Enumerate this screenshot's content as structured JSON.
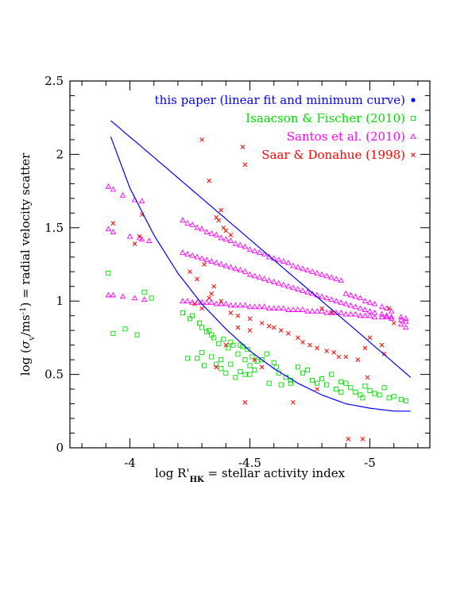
{
  "chart_data": {
    "type": "scatter",
    "xlabel": "log R'HK  = stellar activity index",
    "xlabel_parts": {
      "main": "log R'",
      "sub": "HK",
      "rest": "  = stellar activity index"
    },
    "ylabel": "log (σv/ms-1)  = radial velocity scatter",
    "ylabel_parts": {
      "a": "log (",
      "sigma": "σ",
      "sub": "v",
      "b": "/ms",
      "sup": "-1",
      "c": ")  = radial velocity scatter"
    },
    "x_reversed": true,
    "xlim": [
      -3.75,
      -5.25
    ],
    "ylim": [
      0,
      2.5
    ],
    "x_ticks": [
      -4,
      -4.5,
      -5
    ],
    "x_tick_labels": [
      "-4",
      "-4.5",
      "-5"
    ],
    "y_ticks": [
      0,
      0.5,
      1,
      1.5,
      2,
      2.5
    ],
    "y_tick_labels": [
      "0",
      "0.5",
      "1",
      "1.5",
      "2",
      "2.5"
    ],
    "grid": false,
    "legend_position": "top-right",
    "series": [
      {
        "name": "this paper (linear fit and minimum curve)",
        "color": "#0000ff",
        "marker": "dot",
        "kind": "lines",
        "lines": [
          {
            "x": [
              -3.92,
              -4.1,
              -4.3,
              -4.5,
              -4.7,
              -4.9,
              -5.17
            ],
            "y": [
              2.23,
              1.98,
              1.7,
              1.42,
              1.14,
              0.86,
              0.48
            ]
          },
          {
            "x": [
              -3.92,
              -4.0,
              -4.1,
              -4.2,
              -4.3,
              -4.4,
              -4.5,
              -4.6,
              -4.7,
              -4.8,
              -4.9,
              -5.0,
              -5.1,
              -5.17
            ],
            "y": [
              2.12,
              1.77,
              1.45,
              1.19,
              0.98,
              0.81,
              0.66,
              0.54,
              0.44,
              0.36,
              0.3,
              0.27,
              0.25,
              0.25
            ]
          }
        ]
      },
      {
        "name": "Isaacson & Fischer (2010)",
        "color": "#00dd00",
        "marker": "square",
        "kind": "points",
        "x": [
          -3.91,
          -3.93,
          -3.98,
          -4.03,
          -4.06,
          -4.09,
          -4.22,
          -4.24,
          -4.25,
          -4.26,
          -4.28,
          -4.29,
          -4.3,
          -4.31,
          -4.32,
          -4.33,
          -4.34,
          -4.35,
          -4.36,
          -4.37,
          -4.38,
          -4.39,
          -4.4,
          -4.41,
          -4.42,
          -4.43,
          -4.44,
          -4.45,
          -4.46,
          -4.47,
          -4.48,
          -4.49,
          -4.5,
          -4.5,
          -4.51,
          -4.52,
          -4.53,
          -4.55,
          -4.57,
          -4.58,
          -4.6,
          -4.61,
          -4.63,
          -4.65,
          -4.67,
          -4.7,
          -4.72,
          -4.74,
          -4.76,
          -4.78,
          -4.8,
          -4.82,
          -4.84,
          -4.86,
          -4.88,
          -4.9,
          -4.92,
          -4.94,
          -4.96,
          -4.98,
          -5.0,
          -5.02,
          -5.04,
          -5.06,
          -5.08,
          -5.1,
          -5.13,
          -5.15,
          -4.3,
          -4.34,
          -4.38,
          -4.42,
          -4.46,
          -4.48,
          -4.62,
          -4.67,
          -4.88,
          -4.97
        ],
        "y": [
          1.19,
          0.78,
          0.81,
          0.77,
          1.06,
          1.02,
          0.92,
          0.61,
          0.88,
          0.9,
          0.61,
          0.85,
          0.82,
          0.56,
          0.79,
          0.8,
          0.77,
          0.75,
          0.57,
          0.71,
          0.54,
          0.74,
          0.51,
          0.68,
          0.72,
          0.7,
          0.48,
          0.64,
          0.7,
          0.69,
          0.6,
          0.67,
          0.56,
          0.5,
          0.62,
          0.53,
          0.59,
          0.6,
          0.64,
          0.44,
          0.58,
          0.55,
          0.43,
          0.48,
          0.44,
          0.55,
          0.51,
          0.53,
          0.46,
          0.44,
          0.47,
          0.43,
          0.5,
          0.4,
          0.45,
          0.44,
          0.41,
          0.38,
          0.36,
          0.42,
          0.39,
          0.37,
          0.36,
          0.41,
          0.34,
          0.35,
          0.33,
          0.32,
          0.65,
          0.62,
          0.6,
          0.57,
          0.52,
          0.5,
          0.51,
          0.46,
          0.38,
          0.34
        ]
      },
      {
        "name": "Santos et al. (2010)",
        "color": "#ff00ff",
        "marker": "triangle",
        "kind": "points",
        "x": [
          -3.91,
          -3.93,
          -3.97,
          -4.02,
          -4.05,
          -4.08,
          -3.91,
          -3.93,
          -4.0,
          -4.04,
          -4.05,
          -3.91,
          -3.93,
          -3.97,
          -4.02,
          -4.06,
          -4.22,
          -4.24,
          -4.26,
          -4.28,
          -4.3,
          -4.32,
          -4.34,
          -4.36,
          -4.38,
          -4.4,
          -4.42,
          -4.44,
          -4.46,
          -4.48,
          -4.5,
          -4.52,
          -4.54,
          -4.56,
          -4.58,
          -4.6,
          -4.62,
          -4.64,
          -4.66,
          -4.68,
          -4.7,
          -4.72,
          -4.74,
          -4.76,
          -4.78,
          -4.8,
          -4.82,
          -4.84,
          -4.86,
          -4.88,
          -4.9,
          -4.92,
          -4.94,
          -4.96,
          -4.98,
          -5.0,
          -5.02,
          -5.05,
          -5.07,
          -5.09,
          -5.13,
          -5.15,
          -4.22,
          -4.24,
          -4.26,
          -4.28,
          -4.3,
          -4.32,
          -4.34,
          -4.36,
          -4.38,
          -4.4,
          -4.42,
          -4.44,
          -4.46,
          -4.48,
          -4.5,
          -4.52,
          -4.54,
          -4.56,
          -4.58,
          -4.6,
          -4.62,
          -4.64,
          -4.66,
          -4.68,
          -4.7,
          -4.72,
          -4.74,
          -4.76,
          -4.78,
          -4.8,
          -4.82,
          -4.84,
          -4.86,
          -4.88,
          -4.9,
          -4.92,
          -4.94,
          -4.96,
          -4.98,
          -5.0,
          -5.02,
          -5.05,
          -5.07,
          -5.09,
          -5.13,
          -5.15,
          -4.22,
          -4.24,
          -4.26,
          -4.28,
          -4.3,
          -4.32,
          -4.34,
          -4.36,
          -4.38,
          -4.4,
          -4.42,
          -4.44,
          -4.46,
          -4.48,
          -4.5,
          -4.52,
          -4.54,
          -4.56,
          -4.58,
          -4.6,
          -4.62,
          -4.64,
          -4.66,
          -4.68,
          -4.7,
          -4.72,
          -4.74,
          -4.76,
          -4.78,
          -4.8,
          -4.82,
          -4.84,
          -4.86,
          -4.88,
          -4.9,
          -4.92,
          -4.94,
          -4.96,
          -4.98,
          -5.0,
          -5.02,
          -5.05,
          -5.07,
          -5.09,
          -5.13,
          -5.15
        ],
        "y": [
          1.78,
          1.76,
          1.72,
          1.69,
          1.68,
          1.41,
          1.49,
          1.47,
          1.44,
          1.43,
          1.42,
          1.04,
          1.04,
          1.03,
          1.02,
          1.01,
          1.55,
          1.53,
          1.52,
          1.5,
          1.49,
          1.47,
          1.46,
          1.45,
          1.43,
          1.42,
          1.41,
          1.39,
          1.38,
          1.37,
          1.35,
          1.34,
          1.33,
          1.32,
          1.3,
          1.29,
          1.28,
          1.27,
          1.26,
          1.24,
          1.23,
          1.22,
          1.21,
          1.2,
          1.19,
          1.18,
          1.17,
          1.16,
          1.15,
          1.14,
          1.05,
          1.04,
          1.03,
          1.02,
          1.0,
          0.99,
          0.98,
          0.96,
          0.95,
          0.93,
          0.89,
          0.88,
          1.33,
          1.32,
          1.31,
          1.3,
          1.29,
          1.28,
          1.27,
          1.26,
          1.25,
          1.24,
          1.23,
          1.22,
          1.21,
          1.2,
          1.18,
          1.17,
          1.16,
          1.15,
          1.14,
          1.13,
          1.12,
          1.11,
          1.1,
          1.09,
          1.08,
          1.07,
          1.06,
          1.05,
          1.04,
          1.03,
          1.02,
          1.01,
          1.0,
          0.99,
          0.98,
          0.97,
          0.96,
          0.95,
          0.94,
          0.93,
          0.92,
          0.91,
          0.9,
          0.89,
          0.84,
          0.82,
          1.0,
          1.0,
          0.99,
          0.99,
          0.99,
          0.99,
          0.99,
          0.98,
          0.98,
          0.98,
          0.97,
          0.97,
          0.97,
          0.97,
          0.96,
          0.96,
          0.96,
          0.96,
          0.95,
          0.95,
          0.95,
          0.95,
          0.94,
          0.94,
          0.94,
          0.94,
          0.93,
          0.93,
          0.93,
          0.93,
          0.92,
          0.92,
          0.92,
          0.92,
          0.91,
          0.91,
          0.91,
          0.9,
          0.9,
          0.9,
          0.89,
          0.89,
          0.89,
          0.88,
          0.87,
          0.86
        ]
      },
      {
        "name": "Saar & Donahue (1998)",
        "color": "#ff0000",
        "marker": "cross",
        "kind": "points",
        "x": [
          -3.93,
          -4.02,
          -4.05,
          -4.04,
          -4.3,
          -4.33,
          -4.36,
          -4.38,
          -4.47,
          -4.48,
          -4.37,
          -4.39,
          -4.4,
          -4.42,
          -4.25,
          -4.28,
          -4.31,
          -4.35,
          -4.34,
          -4.27,
          -4.3,
          -4.33,
          -4.38,
          -4.42,
          -4.45,
          -4.5,
          -4.55,
          -4.58,
          -4.6,
          -4.63,
          -4.66,
          -4.7,
          -4.72,
          -4.75,
          -4.78,
          -4.82,
          -4.85,
          -4.87,
          -4.9,
          -4.95,
          -4.98,
          -5.0,
          -5.05,
          -5.08,
          -5.1,
          -4.4,
          -4.45,
          -4.5,
          -4.52,
          -4.55,
          -4.48,
          -4.68,
          -4.91,
          -4.97,
          -4.99,
          -5.06,
          -4.78,
          -4.8,
          -4.84,
          -4.36
        ],
        "y": [
          1.53,
          1.39,
          1.59,
          1.44,
          2.1,
          1.82,
          1.57,
          1.62,
          2.05,
          1.93,
          1.55,
          1.5,
          1.48,
          1.45,
          1.2,
          1.15,
          1.25,
          1.1,
          1.05,
          0.98,
          0.95,
          1.02,
          1.0,
          0.92,
          0.9,
          0.88,
          0.85,
          0.83,
          0.82,
          0.8,
          0.78,
          0.75,
          0.72,
          0.7,
          0.68,
          0.66,
          0.65,
          0.62,
          0.62,
          0.6,
          0.68,
          0.75,
          0.7,
          0.95,
          0.85,
          0.7,
          0.82,
          0.8,
          0.6,
          0.55,
          0.31,
          0.31,
          0.06,
          0.06,
          0.48,
          0.64,
          0.4,
          0.95,
          0.92,
          0.55
        ]
      }
    ]
  }
}
